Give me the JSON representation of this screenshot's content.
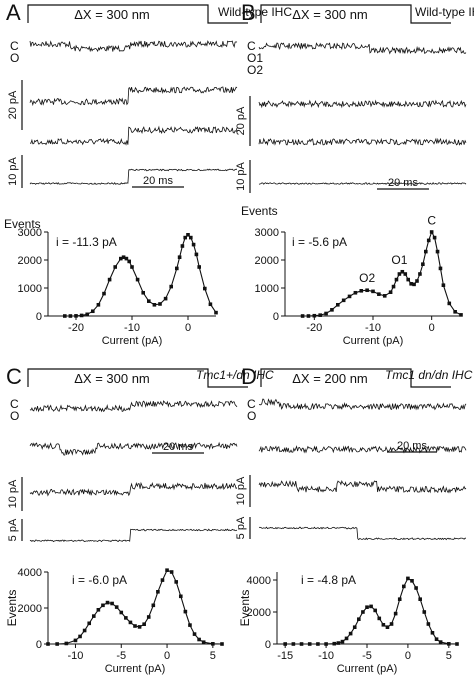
{
  "colors": {
    "ink": "#111111",
    "background": "#ffffff"
  },
  "panels": [
    {
      "letter": "A",
      "stimulus": "ΔX = 300 nm",
      "cell_label": "Wild-type IHC",
      "state_labels": [
        "C",
        "O"
      ],
      "scale_current_1": "20 pA",
      "scale_current_2": "10 pA",
      "scale_time": "20 ms",
      "histogram": {
        "ylabel": "Events",
        "xlabel": "Current (pA)",
        "annotation": "i = -11.3 pA",
        "peak_labels": [],
        "xlim": [
          -25,
          5
        ],
        "ylim": [
          0,
          3000
        ],
        "xticks": [
          "-20",
          "-10",
          "0"
        ],
        "yticks": [
          "0",
          "1000",
          "2000",
          "3000"
        ]
      }
    },
    {
      "letter": "B",
      "stimulus": "ΔX = 300 nm",
      "cell_label": "Wild-type IHC",
      "state_labels": [
        "C",
        "O1",
        "O2"
      ],
      "scale_current_1": "20 pA",
      "scale_current_2": "10 pA",
      "scale_time": "20 ms",
      "histogram": {
        "ylabel": "Events",
        "xlabel": "Current (pA)",
        "annotation": "i = -5.6 pA",
        "peak_labels": [
          "O2",
          "O1",
          "C"
        ],
        "xlim": [
          -25,
          5
        ],
        "ylim": [
          0,
          3000
        ],
        "xticks": [
          "-20",
          "-10",
          "0"
        ],
        "yticks": [
          "0",
          "1000",
          "2000",
          "3000"
        ]
      }
    },
    {
      "letter": "C",
      "stimulus": "ΔX = 300 nm",
      "cell_label": "Tmc1+/dn IHC",
      "state_labels": [
        "C",
        "O"
      ],
      "scale_current_1": "10 pA",
      "scale_current_2": "5 pA",
      "scale_time": "20 ms",
      "histogram": {
        "ylabel": "Events",
        "xlabel": "Current (pA)",
        "annotation": "i = -6.0 pA",
        "peak_labels": [],
        "xlim": [
          -13,
          6
        ],
        "ylim": [
          0,
          4000
        ],
        "xticks": [
          "-10",
          "-5",
          "0",
          "5"
        ],
        "yticks": [
          "0",
          "2000",
          "4000"
        ]
      }
    },
    {
      "letter": "D",
      "stimulus": "ΔX = 200 nm",
      "cell_label": "Tmc1 dn/dn IHC",
      "state_labels": [
        "C",
        "O"
      ],
      "scale_current_1": "10 pA",
      "scale_current_2": "5 pA",
      "scale_time": "20 ms",
      "histogram": {
        "ylabel": "Events",
        "xlabel": "Current (pA)",
        "annotation": "i = -4.8 pA",
        "peak_labels": [],
        "xlim": [
          -16,
          6
        ],
        "ylim": [
          0,
          4500
        ],
        "xticks": [
          "-15",
          "-10",
          "-5",
          "0",
          "5"
        ],
        "yticks": [
          "0",
          "2000",
          "4000"
        ]
      }
    }
  ],
  "chart_data": [
    {
      "type": "scatter",
      "panel": "A",
      "title": "",
      "xlabel": "Current (pA)",
      "ylabel": "Events",
      "xlim": [
        -25,
        5
      ],
      "ylim": [
        0,
        3000
      ],
      "series": [
        {
          "x": [
            -22,
            -21,
            -20,
            -19,
            -18,
            -17,
            -16,
            -15,
            -14,
            -13,
            -12,
            -11.5,
            -11,
            -10.5,
            -10,
            -9,
            -8,
            -7,
            -6,
            -5,
            -4,
            -3,
            -2,
            -1.5,
            -1,
            -0.5,
            0,
            0.5,
            1,
            1.5,
            2,
            3,
            4,
            5
          ],
          "y": [
            0,
            0,
            5,
            20,
            60,
            170,
            400,
            800,
            1300,
            1750,
            2050,
            2100,
            2050,
            1950,
            1750,
            1300,
            830,
            530,
            400,
            430,
            620,
            1050,
            1700,
            2100,
            2500,
            2800,
            2900,
            2800,
            2550,
            2200,
            1750,
            980,
            420,
            120
          ]
        }
      ]
    },
    {
      "type": "scatter",
      "panel": "B",
      "title": "",
      "xlabel": "Current (pA)",
      "ylabel": "Events",
      "xlim": [
        -25,
        5
      ],
      "ylim": [
        0,
        3000
      ],
      "series": [
        {
          "x": [
            -22,
            -21,
            -20,
            -19,
            -18,
            -17,
            -16,
            -15,
            -14,
            -13,
            -12,
            -11,
            -10,
            -9,
            -8,
            -7,
            -6.5,
            -6,
            -5.5,
            -5,
            -4.5,
            -4,
            -3.5,
            -3,
            -2.5,
            -2,
            -1.5,
            -1,
            -0.5,
            0,
            0.5,
            1,
            1.5,
            2,
            3,
            4,
            5
          ],
          "y": [
            0,
            0,
            10,
            30,
            90,
            220,
            400,
            560,
            700,
            830,
            900,
            920,
            880,
            780,
            720,
            850,
            1050,
            1300,
            1500,
            1580,
            1500,
            1300,
            1150,
            1130,
            1250,
            1500,
            1850,
            2300,
            2700,
            3000,
            2800,
            2300,
            1700,
            1100,
            450,
            150,
            40
          ]
        }
      ]
    },
    {
      "type": "scatter",
      "panel": "C",
      "title": "",
      "xlabel": "Current (pA)",
      "ylabel": "Events",
      "xlim": [
        -13,
        6
      ],
      "ylim": [
        0,
        4000
      ],
      "series": [
        {
          "x": [
            -13,
            -12,
            -11,
            -10,
            -9.5,
            -9,
            -8.5,
            -8,
            -7.5,
            -7,
            -6.5,
            -6,
            -5.5,
            -5,
            -4.5,
            -4,
            -3.5,
            -3,
            -2.5,
            -2,
            -1.5,
            -1,
            -0.5,
            0,
            0.5,
            1,
            1.5,
            2,
            2.5,
            3,
            3.5,
            4,
            5,
            6
          ],
          "y": [
            0,
            0,
            30,
            200,
            420,
            750,
            1150,
            1550,
            1900,
            2150,
            2300,
            2250,
            2050,
            1750,
            1450,
            1200,
            1000,
            950,
            1100,
            1500,
            2150,
            2900,
            3550,
            4100,
            4000,
            3450,
            2650,
            1800,
            1050,
            550,
            250,
            100,
            10,
            0
          ]
        }
      ]
    },
    {
      "type": "scatter",
      "panel": "D",
      "title": "",
      "xlabel": "Current (pA)",
      "ylabel": "Events",
      "xlim": [
        -16,
        6
      ],
      "ylim": [
        0,
        4500
      ],
      "series": [
        {
          "x": [
            -15,
            -14,
            -13,
            -12,
            -11,
            -10,
            -9,
            -8.5,
            -8,
            -7.5,
            -7,
            -6.5,
            -6,
            -5.5,
            -5,
            -4.5,
            -4,
            -3.5,
            -3,
            -2.5,
            -2,
            -1.5,
            -1,
            -0.5,
            0,
            0.5,
            1,
            1.5,
            2,
            2.5,
            3,
            3.5,
            4,
            5,
            6
          ],
          "y": [
            0,
            0,
            0,
            0,
            0,
            0,
            20,
            60,
            150,
            350,
            650,
            1050,
            1550,
            2000,
            2300,
            2350,
            2100,
            1600,
            1200,
            1050,
            1250,
            1900,
            2800,
            3600,
            4100,
            3950,
            3500,
            2800,
            2000,
            1250,
            700,
            300,
            120,
            10,
            0
          ]
        }
      ]
    }
  ]
}
